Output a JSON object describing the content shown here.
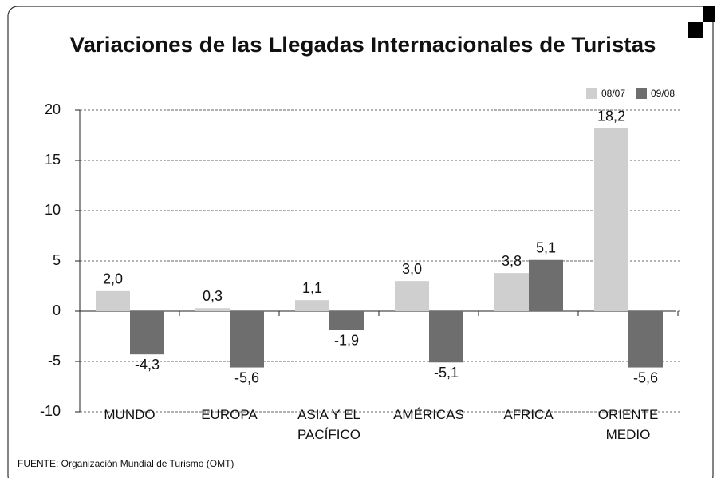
{
  "chart_data": {
    "type": "bar",
    "title": "Variaciones de las Llegadas Internacionales de Turistas",
    "categories": [
      "MUNDO",
      "EUROPA",
      "ASIA Y EL PACÍFICO",
      "AMÉRICAS",
      "AFRICA",
      "ORIENTE MEDIO"
    ],
    "series": [
      {
        "name": "08/07",
        "color": "#cfcfcf",
        "values": [
          2.0,
          0.3,
          1.1,
          3.0,
          3.8,
          18.2
        ],
        "value_labels": [
          "2,0",
          "0,3",
          "1,1",
          "3,0",
          "3,8",
          "18,2"
        ]
      },
      {
        "name": "09/08",
        "color": "#6e6e6e",
        "values": [
          -4.3,
          -5.6,
          -1.9,
          -5.1,
          5.1,
          -5.6
        ],
        "value_labels": [
          "-4,3",
          "-5,6",
          "-1,9",
          "-5,1",
          "5,1",
          "-5,6"
        ]
      }
    ],
    "ylim": [
      -10,
      20
    ],
    "yticks": [
      -10,
      -5,
      0,
      5,
      10,
      15,
      20
    ],
    "grid": true,
    "legend": "top-right",
    "source": "FUENTE: Organización Mundial de Turismo (OMT)"
  }
}
